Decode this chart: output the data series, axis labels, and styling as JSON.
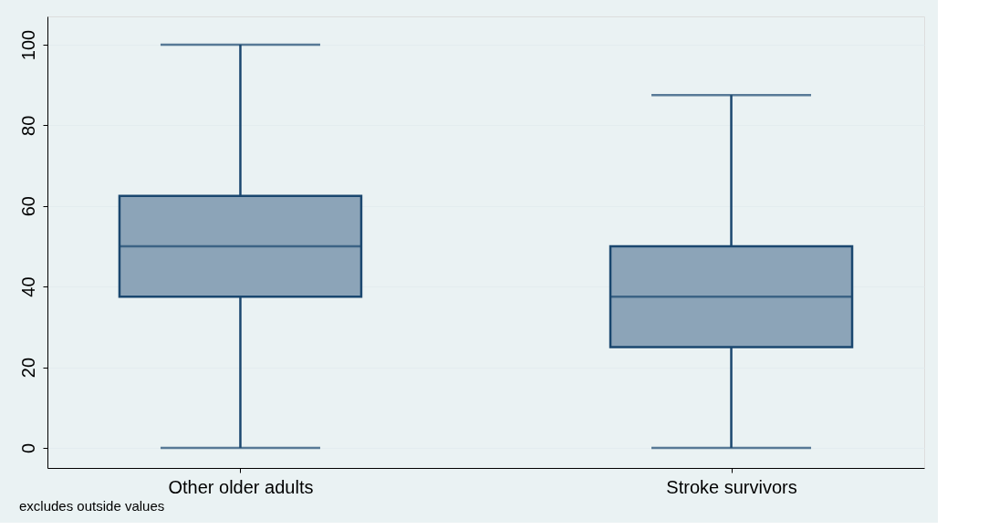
{
  "chart_data": {
    "type": "box",
    "categories": [
      "Other older adults",
      "Stroke survivors"
    ],
    "boxes": [
      {
        "low": 0,
        "q1": 37.5,
        "median": 50,
        "q3": 62.5,
        "high": 100
      },
      {
        "low": 0,
        "q1": 25,
        "median": 37.5,
        "q3": 50,
        "high": 87.5
      }
    ],
    "color": "#8ca4b8",
    "ylim": [
      -5,
      107
    ],
    "yticks": [
      0,
      20,
      40,
      60,
      80,
      100
    ],
    "grid": "y",
    "annotations": [
      "excludes outside values"
    ]
  }
}
